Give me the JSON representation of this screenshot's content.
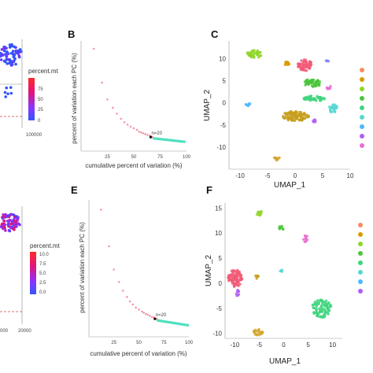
{
  "panels": {
    "A": {
      "legend_title": "percent.mt",
      "ticks": [
        "75",
        "50",
        "25",
        "0"
      ],
      "xtick": "100000",
      "colors": [
        "#ff2a2a",
        "#d0169a",
        "#6a3cff",
        "#3355ff"
      ]
    },
    "B": {
      "letter": "B",
      "ylabel": "percent of variation each PC (%)",
      "xlabel": "cumulative percent of variation (%)",
      "xticks": [
        "25",
        "50",
        "75",
        "100"
      ],
      "annotation": "n=20"
    },
    "C": {
      "letter": "C",
      "xlabel": "UMAP_1",
      "ylabel": "UMAP_2",
      "xticks": [
        "-10",
        "-5",
        "0",
        "5",
        "10"
      ],
      "yticks": [
        "10",
        "5",
        "0",
        "-5",
        "-10"
      ]
    },
    "D": {
      "legend_title": "percent.mt",
      "ticks": [
        "10.0",
        "7.5",
        "5.0",
        "2.5",
        "0.0"
      ],
      "xtick": "20000",
      "xtick_left": "000"
    },
    "E": {
      "letter": "E",
      "ylabel": "percent of variation each PC (%)",
      "xlabel": "cumulative percent of variation (%)",
      "xticks": [
        "25",
        "50",
        "75",
        "100"
      ],
      "annotation": "n=20"
    },
    "F": {
      "letter": "F",
      "xlabel": "UMAP_1",
      "ylabel": "UMAP_2",
      "xticks": [
        "-10",
        "-5",
        "0",
        "5",
        "10"
      ],
      "yticks": [
        "15",
        "10",
        "5",
        "0",
        "-5",
        "-10"
      ]
    }
  },
  "chart_data": [
    {
      "panel": "B",
      "type": "scatter",
      "xlabel": "cumulative percent of variation (%)",
      "ylabel": "percent of variation each PC (%)",
      "xlim": [
        0,
        100
      ],
      "ylim": [
        0,
        13
      ],
      "points": [
        [
          12,
          12
        ],
        [
          20,
          8
        ],
        [
          25,
          6
        ],
        [
          30,
          5
        ],
        [
          34,
          4.3
        ],
        [
          38,
          3.7
        ],
        [
          41,
          3.3
        ],
        [
          44,
          3
        ],
        [
          47,
          2.8
        ],
        [
          50,
          2.6
        ],
        [
          53,
          2.4
        ],
        [
          55,
          2.2
        ],
        [
          57,
          2.1
        ],
        [
          59,
          2
        ],
        [
          61,
          1.9
        ],
        [
          63,
          1.8
        ],
        [
          65,
          1.7
        ],
        [
          66,
          1.65
        ],
        [
          67,
          1.6
        ],
        [
          68,
          1.55
        ]
      ],
      "tail_start": 69,
      "tail_end": 98,
      "tail_y": [
        1.5,
        1.1
      ],
      "marker": {
        "x": 66,
        "y": 1.65,
        "label": "n=20"
      }
    },
    {
      "panel": "E",
      "type": "scatter",
      "xlabel": "cumulative percent of variation (%)",
      "ylabel": "percent of variation each PC (%)",
      "xlim": [
        0,
        100
      ],
      "ylim": [
        0,
        13
      ],
      "points": [
        [
          12,
          12
        ],
        [
          20,
          8.5
        ],
        [
          25,
          6.3
        ],
        [
          30,
          5.1
        ],
        [
          34,
          4.3
        ],
        [
          38,
          3.7
        ],
        [
          41,
          3.3
        ],
        [
          44,
          3
        ],
        [
          47,
          2.7
        ],
        [
          50,
          2.5
        ],
        [
          53,
          2.3
        ],
        [
          55,
          2.2
        ],
        [
          57,
          2.1
        ],
        [
          59,
          2
        ],
        [
          61,
          1.9
        ],
        [
          63,
          1.8
        ],
        [
          65,
          1.75
        ],
        [
          66,
          1.7
        ],
        [
          67,
          1.65
        ],
        [
          68,
          1.6
        ]
      ],
      "tail_start": 69,
      "tail_end": 99,
      "tail_y": [
        1.55,
        1.1
      ],
      "marker": {
        "x": 66,
        "y": 1.7,
        "label": "n=20"
      }
    },
    {
      "panel": "C",
      "type": "scatter",
      "xlabel": "UMAP_1",
      "ylabel": "UMAP_2",
      "xlim": [
        -12,
        10
      ],
      "ylim": [
        -15,
        14
      ],
      "clusters": [
        {
          "color": "#8ed629",
          "cx": -7.5,
          "cy": 11,
          "rx": 1.4,
          "ry": 0.9,
          "n": 40
        },
        {
          "color": "#f15a77",
          "cx": 1.8,
          "cy": 8.5,
          "rx": 1.3,
          "ry": 1.3,
          "n": 60
        },
        {
          "color": "#d99a00",
          "cx": -1.5,
          "cy": 8.8,
          "rx": 0.6,
          "ry": 0.5,
          "n": 10
        },
        {
          "color": "#49c63a",
          "cx": 3.2,
          "cy": 4.5,
          "rx": 1.6,
          "ry": 0.9,
          "n": 50
        },
        {
          "color": "#3fd57e",
          "cx": 3.5,
          "cy": 1,
          "rx": 2,
          "ry": 0.6,
          "n": 50
        },
        {
          "color": "#c69e1a",
          "cx": 0,
          "cy": -3,
          "rx": 2.5,
          "ry": 1.1,
          "n": 90
        },
        {
          "color": "#4fb6ff",
          "cx": -8.5,
          "cy": -0.5,
          "rx": 0.5,
          "ry": 0.4,
          "n": 8
        },
        {
          "color": "#56d7d2",
          "cx": 7,
          "cy": -1.3,
          "rx": 0.9,
          "ry": 0.9,
          "n": 25
        },
        {
          "color": "#b05ef5",
          "cx": 3.5,
          "cy": -4,
          "rx": 0.4,
          "ry": 0.4,
          "n": 6
        },
        {
          "color": "#e76fd1",
          "cx": 6,
          "cy": 3.5,
          "rx": 0.6,
          "ry": 0.5,
          "n": 8
        },
        {
          "color": "#d2a42b",
          "cx": -3.3,
          "cy": -12.5,
          "rx": 0.5,
          "ry": 0.5,
          "n": 8
        },
        {
          "color": "#7d80ff",
          "cx": 5.8,
          "cy": 9.5,
          "rx": 0.3,
          "ry": 0.3,
          "n": 4
        }
      ],
      "legend_colors": [
        "#f58c62",
        "#d99a00",
        "#8ed629",
        "#49c63a",
        "#3fd57e",
        "#56d7d2",
        "#4fb6ff",
        "#b05ef5",
        "#e76fd1"
      ]
    },
    {
      "panel": "F",
      "type": "scatter",
      "xlabel": "UMAP_1",
      "ylabel": "UMAP_2",
      "xlim": [
        -12,
        12
      ],
      "ylim": [
        -11,
        16
      ],
      "clusters": [
        {
          "color": "#8ed629",
          "cx": -5,
          "cy": 14,
          "rx": 0.6,
          "ry": 0.5,
          "n": 12
        },
        {
          "color": "#49c63a",
          "cx": -0.5,
          "cy": 11,
          "rx": 0.5,
          "ry": 0.5,
          "n": 8
        },
        {
          "color": "#e76fd1",
          "cx": 4.5,
          "cy": 9,
          "rx": 0.5,
          "ry": 0.9,
          "n": 12
        },
        {
          "color": "#f15a77",
          "cx": -10,
          "cy": 1,
          "rx": 1.5,
          "ry": 1.8,
          "n": 90
        },
        {
          "color": "#c69e1a",
          "cx": -5.5,
          "cy": 1.3,
          "rx": 0.4,
          "ry": 0.4,
          "n": 6
        },
        {
          "color": "#56d7d2",
          "cx": -0.5,
          "cy": 2.5,
          "rx": 0.2,
          "ry": 0.3,
          "n": 4
        },
        {
          "color": "#b05ef5",
          "cx": -9.5,
          "cy": -2.2,
          "rx": 0.4,
          "ry": 0.9,
          "n": 10
        },
        {
          "color": "#3fd57e",
          "cx": 7.8,
          "cy": -5,
          "rx": 2,
          "ry": 1.8,
          "n": 90
        },
        {
          "color": "#d2a42b",
          "cx": -5.3,
          "cy": -9.8,
          "rx": 1,
          "ry": 0.6,
          "n": 20
        }
      ],
      "legend_colors": [
        "#f58c62",
        "#d99a00",
        "#8ed629",
        "#49c63a",
        "#3fd57e",
        "#56d7d2",
        "#4fb6ff",
        "#b05ef5"
      ]
    }
  ]
}
